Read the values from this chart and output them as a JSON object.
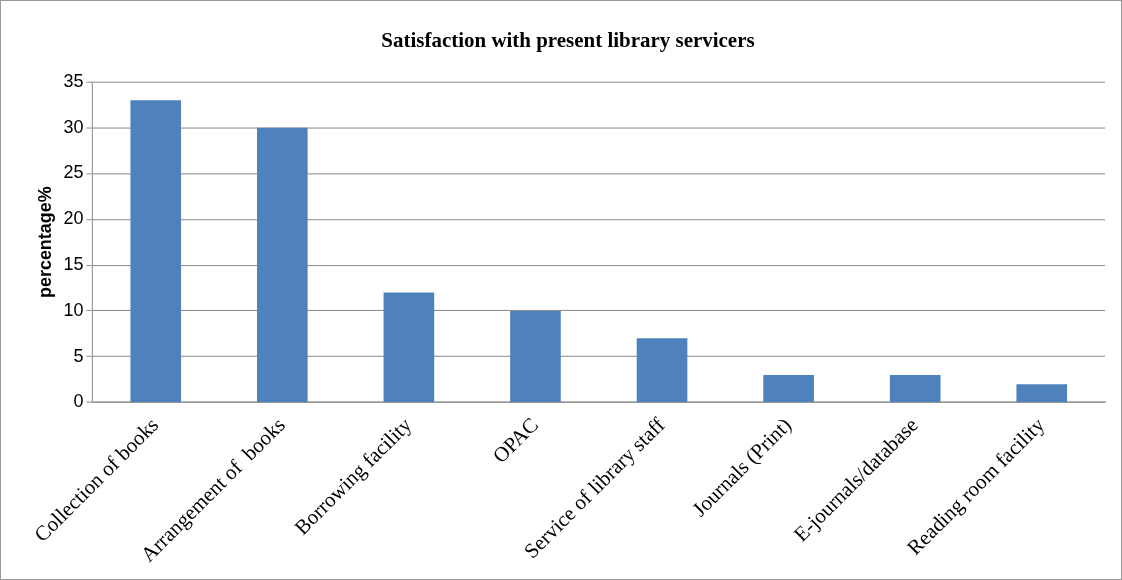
{
  "chart_data": {
    "type": "bar",
    "title": "Satisfaction with present library servicers",
    "ylabel": "percentage%",
    "categories": [
      "Collection of books",
      "Arrangement of  books",
      "Borrowing facility",
      "OPAC",
      "Service of library staff",
      "Journals (Print)",
      "E-journals/database",
      "Reading room facility"
    ],
    "values": [
      33,
      30,
      12,
      10,
      7,
      3,
      3,
      2
    ],
    "color": "#4f81bd",
    "ylim": [
      0,
      35
    ],
    "yticks": [
      0,
      5,
      10,
      15,
      20,
      25,
      30,
      35
    ],
    "grid": "y",
    "legend": false
  }
}
